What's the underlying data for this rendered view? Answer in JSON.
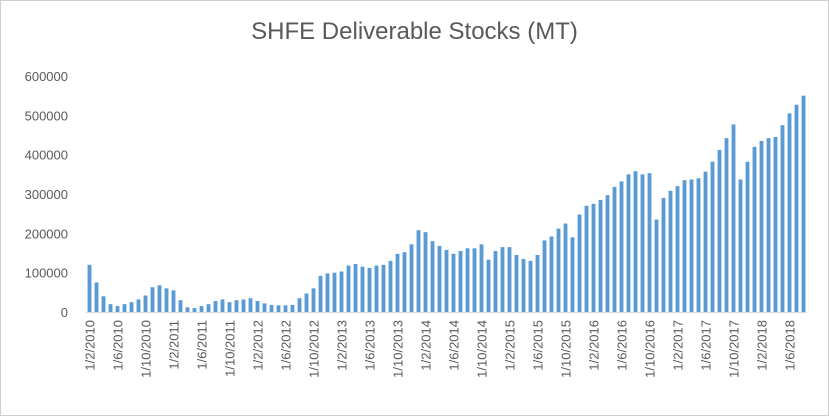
{
  "chart_data": {
    "type": "bar",
    "title": "SHFE Deliverable Stocks (MT)",
    "xlabel": "",
    "ylabel": "",
    "ylim": [
      0,
      600000
    ],
    "yticks": [
      0,
      100000,
      200000,
      300000,
      400000,
      500000,
      600000
    ],
    "ytick_labels": [
      "0",
      "100000",
      "200000",
      "300000",
      "400000",
      "500000",
      "600000"
    ],
    "x_tick_labels": [
      "1/2/2010",
      "1/6/2010",
      "1/10/2010",
      "1/2/2011",
      "1/6/2011",
      "1/10/2011",
      "1/2/2012",
      "1/6/2012",
      "1/10/2012",
      "1/2/2013",
      "1/6/2013",
      "1/10/2013",
      "1/2/2014",
      "1/6/2014",
      "1/10/2014",
      "1/2/2015",
      "1/6/2015",
      "1/10/2015",
      "1/2/2016",
      "1/6/2016",
      "1/10/2016",
      "1/2/2017",
      "1/6/2017",
      "1/10/2017",
      "1/2/2018",
      "1/6/2018"
    ],
    "x_label_every": 4,
    "grid": false,
    "bar_color": "#5b9bd5",
    "values": [
      120000,
      75000,
      40000,
      20000,
      15000,
      20000,
      25000,
      32000,
      42000,
      63000,
      68000,
      60000,
      55000,
      30000,
      12000,
      10000,
      15000,
      20000,
      28000,
      32000,
      25000,
      30000,
      32000,
      35000,
      28000,
      22000,
      18000,
      17000,
      17000,
      18000,
      35000,
      47000,
      60000,
      92000,
      98000,
      100000,
      103000,
      118000,
      122000,
      115000,
      112000,
      118000,
      120000,
      130000,
      148000,
      152000,
      172000,
      208000,
      203000,
      180000,
      168000,
      158000,
      148000,
      155000,
      162000,
      162000,
      172000,
      133000,
      155000,
      165000,
      165000,
      145000,
      135000,
      130000,
      145000,
      182000,
      192000,
      212000,
      225000,
      190000,
      248000,
      270000,
      275000,
      285000,
      297000,
      318000,
      332000,
      350000,
      358000,
      350000,
      353000,
      235000,
      290000,
      308000,
      320000,
      335000,
      337000,
      340000,
      357000,
      382000,
      412000,
      442000,
      477000,
      337000,
      382000,
      420000,
      435000,
      442000,
      445000,
      475000,
      505000,
      527000,
      550000
    ]
  }
}
